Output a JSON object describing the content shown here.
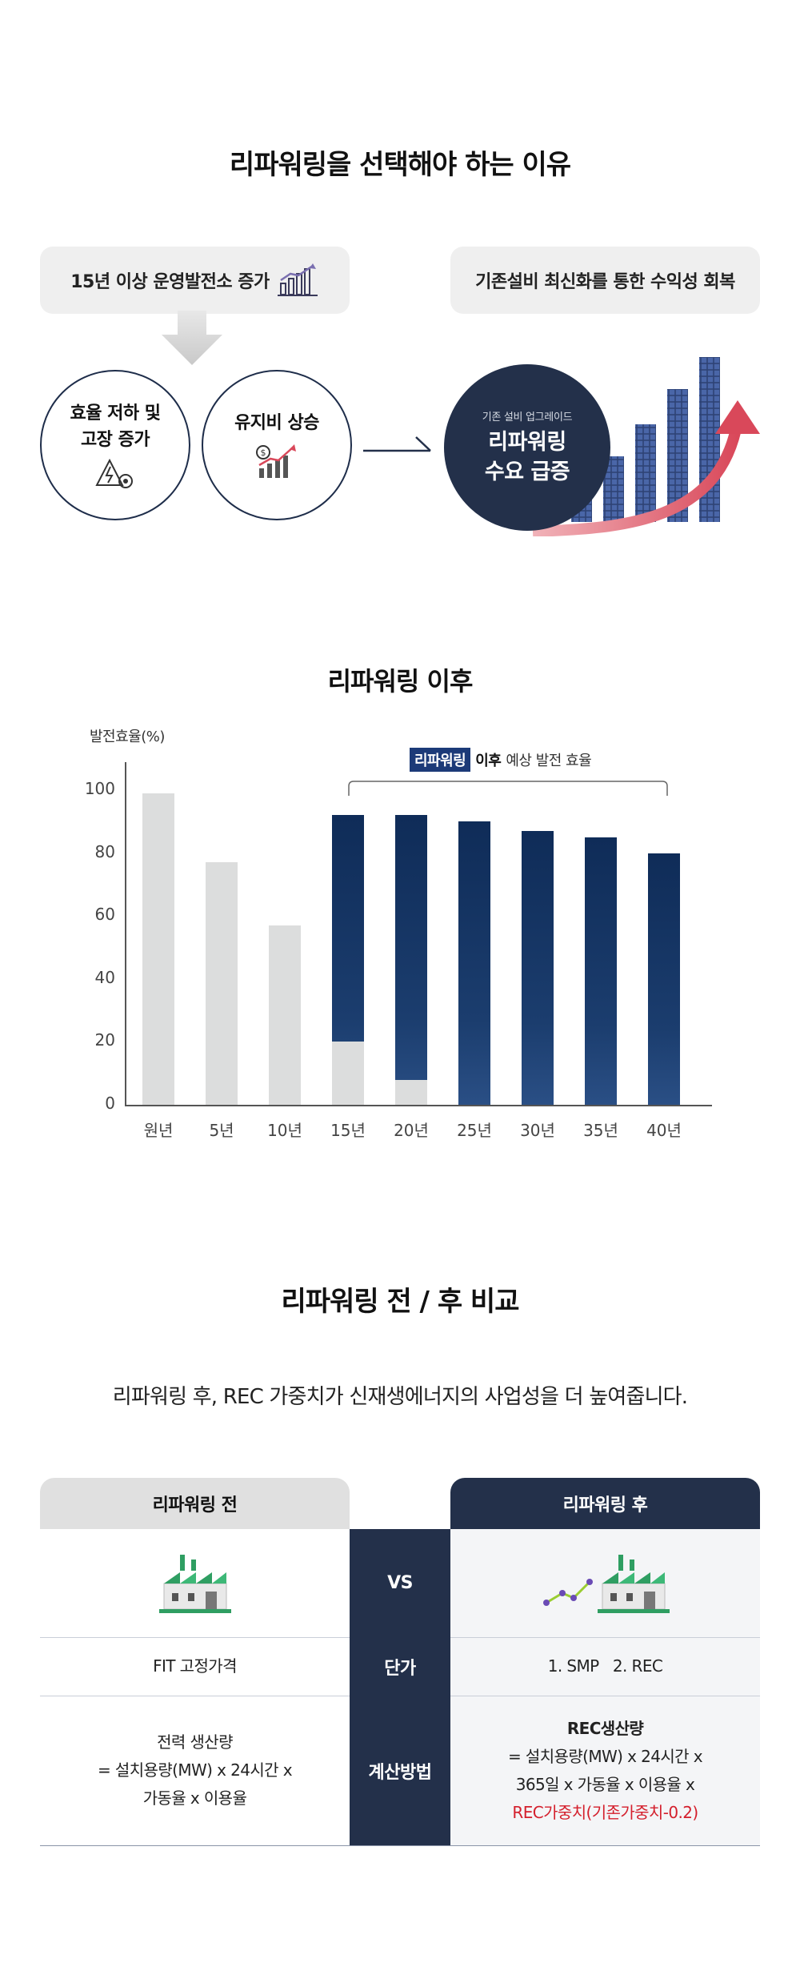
{
  "section_reason": {
    "title": "리파워링을 선택해야 하는 이유",
    "left_pill": "15년 이상 운영발전소 증가",
    "right_pill": "기존설비 최신화를 통한 수익성 회복",
    "circle_1": "효율 저하 및\n고장 증가",
    "circle_2": "유지비 상승",
    "result_small": "기존 설비 업그레이드",
    "result_big": "리파워링\n수요 급증",
    "icons": [
      "bar-growth-icon",
      "down-arrow-icon",
      "warning-gear-icon",
      "money-rising-icon",
      "right-arrow-icon",
      "solar-growth-chart-icon"
    ],
    "colors": {
      "navy": "#23304a",
      "red_arrow": "#d9485a",
      "pill_bg": "#efefef"
    }
  },
  "section_chart": {
    "title": "리파워링 이후",
    "annotation_tag": "리파워링",
    "annotation_bold": "이후",
    "annotation_rest": "예상 발전 효율"
  },
  "chart_data": {
    "type": "bar",
    "ylabel": "발전효율(%)",
    "categories": [
      "원년",
      "5년",
      "10년",
      "15년",
      "20년",
      "25년",
      "30년",
      "35년",
      "40년"
    ],
    "yticks": [
      "0",
      "20",
      "40",
      "60",
      "80",
      "100"
    ],
    "ylim": [
      0,
      100
    ],
    "series": [
      {
        "values": [
          99,
          77,
          57,
          20,
          8,
          0,
          0,
          0,
          0
        ],
        "color": "#dcdddd"
      },
      {
        "values": [
          0,
          0,
          0,
          92,
          92,
          90,
          87,
          85,
          80
        ],
        "color": "#1b3d6e"
      }
    ],
    "annotation": "리파워링 이후 예상 발전 효율",
    "annotation_span": [
      "15년",
      "40년"
    ]
  },
  "section_compare": {
    "title": "리파워링 전 / 후 비교",
    "subtitle": "리파워링 후, REC 가중치가 신재생에너지의 사업성을 더 높여줍니다.",
    "before_header": "리파워링 전",
    "after_header": "리파워링 후",
    "vs": "VS",
    "rows": [
      {
        "label": "단가",
        "before": "FIT 고정가격",
        "after": "1. SMP   2. REC"
      },
      {
        "label": "계산방법",
        "before_lines": [
          "전력 생산량",
          "= 설치용량(MW) x 24시간 x",
          "가동율 x 이용율"
        ],
        "after_lines": [
          "REC생산량",
          "= 설치용량(MW) x 24시간 x",
          "365일 x 가동율 x 이용율 x"
        ],
        "after_red": "REC가중치(기존가중치-0.2)"
      }
    ],
    "icons": [
      "factory-icon",
      "factory-growth-icon"
    ],
    "colors": {
      "navy": "#23304a",
      "red_text": "#d41f2c",
      "gray_header": "#e0e0e0"
    }
  }
}
